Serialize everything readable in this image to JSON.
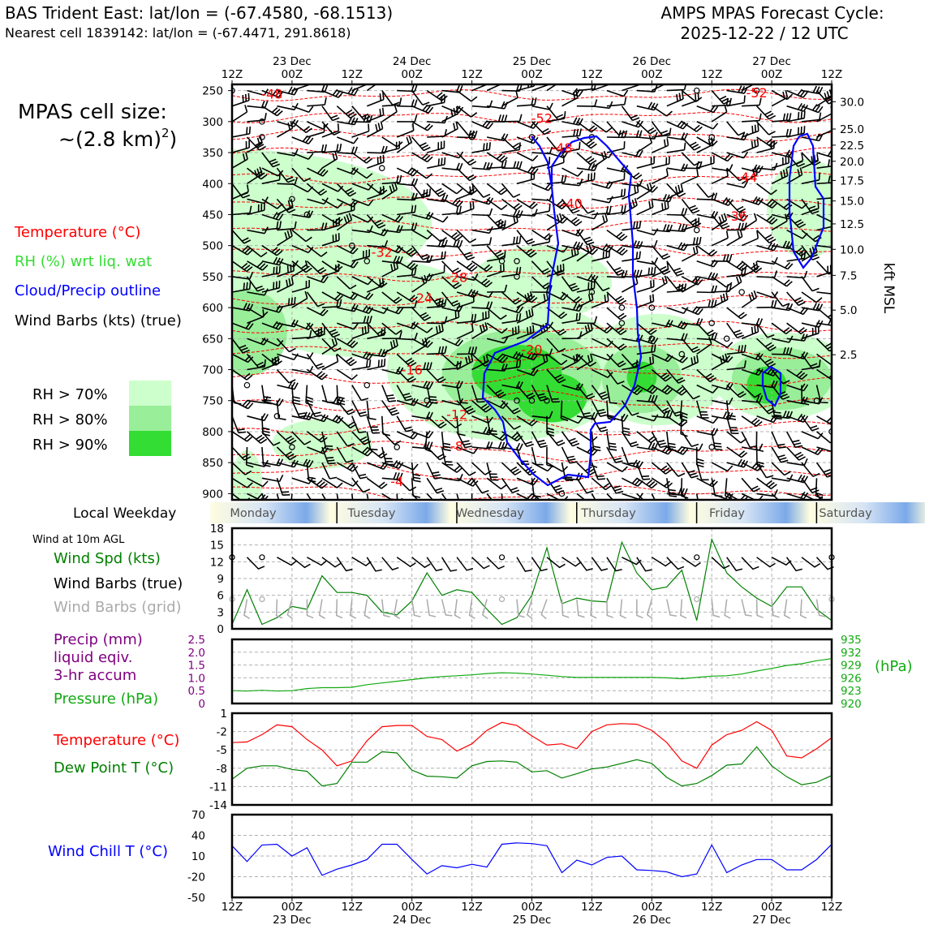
{
  "header": {
    "station": "BAS Trident East: lat/lon = (-67.4580, -68.1513)",
    "nearest_cell": "Nearest cell 1839142: lat/lon = (-67.4471, 291.8618)",
    "product": "AMPS MPAS Forecast Cycle:",
    "cycle": "2025-12-22 / 12 UTC"
  },
  "side_labels": {
    "cell_size_1": "MPAS cell size:",
    "cell_size_2": "~(2.8 km)",
    "cell_size_exp": "2",
    "temperature": "Temperature (°C)",
    "rh": "RH (%) wrt liq. wat",
    "cloud": "Cloud/Precip outline",
    "wind_barbs": "Wind Barbs (kts) (true)",
    "rh70": "RH > 70%",
    "rh80": "RH > 80%",
    "rh90": "RH > 90%",
    "kft_label": "kft MSL",
    "local_weekday": "Local Weekday",
    "wind_10m": "Wind at 10m AGL",
    "wind_spd": "Wind Spd (kts)",
    "wind_barbs_true": "Wind Barbs (true)",
    "wind_barbs_grid": "Wind Barbs (grid)",
    "precip_1": "Precip (mm)",
    "precip_2": "liquid eqiv.",
    "precip_3": "3-hr accum",
    "pressure": "Pressure (hPa)",
    "hpa": "(hPa)",
    "temp_c": "Temperature (°C)",
    "dewpoint_c": "Dew Point T (°C)",
    "windchill_c": "Wind Chill T (°C)"
  },
  "colors": {
    "temperature": "#ff0000",
    "rh_label": "#33dd33",
    "cloud": "#0000ff",
    "green_line": "#008000",
    "pressure_line": "#11aa11",
    "precip": "#800080",
    "rh70": "#ccffcc",
    "rh80": "#99ee99",
    "rh90": "#33dd33",
    "wind_grid": "#aaaaaa"
  },
  "chart_data": [
    {
      "type": "time-height",
      "title": "Vertical cross-section",
      "x_ticks": [
        "12Z",
        "00Z",
        "12Z",
        "00Z",
        "12Z",
        "00Z",
        "12Z",
        "00Z",
        "12Z",
        "00Z",
        "12Z"
      ],
      "x_dates": [
        "23 Dec",
        "24 Dec",
        "25 Dec",
        "26 Dec",
        "27 Dec"
      ],
      "x_date_tick_index": [
        1,
        3,
        5,
        7,
        9
      ],
      "pressure_levels_hpa": [
        250,
        300,
        350,
        400,
        450,
        500,
        550,
        600,
        650,
        700,
        750,
        800,
        850,
        900
      ],
      "height_ticks_kft": [
        30.0,
        25.0,
        22.5,
        20.0,
        17.5,
        15.0,
        12.5,
        10.0,
        7.5,
        5.0,
        2.5
      ],
      "height_tick_pressure_hpa": [
        268,
        312,
        338,
        364,
        395,
        428,
        465,
        506,
        548,
        604,
        676
      ],
      "ylim_hpa": [
        240,
        910
      ],
      "temperature_contour_labels": [
        {
          "value": -48,
          "hour": 8,
          "p": 255
        },
        {
          "value": -52,
          "hour": 62,
          "p": 294
        },
        {
          "value": -52,
          "hour": 105,
          "p": 253
        },
        {
          "value": -48,
          "hour": 66,
          "p": 342
        },
        {
          "value": -44,
          "hour": 103,
          "p": 389
        },
        {
          "value": -40,
          "hour": 68,
          "p": 432
        },
        {
          "value": -36,
          "hour": 101,
          "p": 452
        },
        {
          "value": -32,
          "hour": 30,
          "p": 510
        },
        {
          "value": -28,
          "hour": 45,
          "p": 551
        },
        {
          "value": -24,
          "hour": 38,
          "p": 584
        },
        {
          "value": -20,
          "hour": 60,
          "p": 667
        },
        {
          "value": -16,
          "hour": 36,
          "p": 700
        },
        {
          "value": -12,
          "hour": 45,
          "p": 772
        },
        {
          "value": -8,
          "hour": 45,
          "p": 823
        },
        {
          "value": -4,
          "hour": 33,
          "p": 880
        }
      ],
      "series": [
        {
          "name": "RH > 70%",
          "threshold": 70
        },
        {
          "name": "RH > 80%",
          "threshold": 80
        },
        {
          "name": "RH > 90%",
          "threshold": 90
        },
        {
          "name": "Cloud/Precip outline"
        },
        {
          "name": "Wind Barbs (kts) (true)"
        }
      ]
    },
    {
      "type": "band",
      "title": "Local Weekday",
      "categories": [
        "Monday",
        "Tuesday",
        "Wednesday",
        "Thursday",
        "Friday",
        "Saturday"
      ]
    },
    {
      "type": "line",
      "title": "Wind at 10m AGL",
      "ylabel": "Wind Spd (kts)",
      "ylim": [
        0,
        18
      ],
      "y_ticks": [
        0,
        3,
        6,
        9,
        12,
        15,
        18
      ],
      "x": [
        0,
        3,
        6,
        9,
        12,
        15,
        18,
        21,
        24,
        27,
        30,
        33,
        36,
        39,
        42,
        45,
        48,
        51,
        54,
        57,
        60,
        63,
        66,
        69,
        72,
        75,
        78,
        81,
        84,
        87,
        90,
        93,
        96,
        99,
        102,
        105,
        108,
        111,
        114,
        117,
        120
      ],
      "values": [
        0.8,
        7.0,
        0.8,
        2.0,
        4.0,
        3.5,
        9.5,
        6.5,
        6.5,
        6.0,
        3.0,
        2.5,
        5.0,
        10.0,
        6.0,
        7.0,
        6.5,
        3.5,
        0.8,
        2.0,
        6.0,
        14.5,
        4.5,
        5.5,
        5.0,
        4.8,
        15.5,
        10.0,
        7.0,
        7.5,
        10.5,
        1.5,
        16.0,
        10.0,
        7.5,
        5.5,
        4.0,
        7.5,
        7.5,
        3.5,
        1.5
      ]
    },
    {
      "type": "line",
      "title": "Precip and Pressure",
      "series": [
        {
          "name": "Precip (mm) liquid eqiv. 3-hr accum",
          "ylim": [
            0,
            2.5
          ],
          "y_ticks": [
            0,
            0.5,
            1.0,
            1.5,
            2.0,
            2.5
          ],
          "values": []
        },
        {
          "name": "Pressure (hPa)",
          "ylim": [
            920,
            935
          ],
          "y_ticks": [
            920,
            923,
            926,
            929,
            932,
            935
          ],
          "x": [
            0,
            3,
            6,
            9,
            12,
            15,
            18,
            21,
            24,
            27,
            30,
            33,
            36,
            39,
            42,
            45,
            48,
            51,
            54,
            57,
            60,
            63,
            66,
            69,
            72,
            75,
            78,
            81,
            84,
            87,
            90,
            93,
            96,
            99,
            102,
            105,
            108,
            111,
            114,
            117,
            120
          ],
          "values": [
            923.0,
            922.9,
            923.1,
            922.9,
            923.0,
            923.5,
            923.7,
            923.7,
            923.8,
            924.4,
            924.8,
            925.2,
            925.6,
            926.0,
            926.3,
            926.5,
            926.7,
            927.0,
            927.2,
            927.1,
            926.9,
            926.6,
            926.3,
            926.1,
            926.1,
            926.1,
            926.1,
            926.1,
            926.1,
            926.0,
            925.8,
            926.1,
            926.4,
            926.5,
            926.9,
            927.6,
            928.2,
            928.9,
            929.3,
            930.0,
            930.5
          ]
        }
      ]
    },
    {
      "type": "line",
      "title": "Temperature and Dew Point",
      "ylim": [
        -14,
        1
      ],
      "y_ticks": [
        -14,
        -11,
        -8,
        -5,
        -2,
        1
      ],
      "x": [
        0,
        3,
        6,
        9,
        12,
        15,
        18,
        21,
        24,
        27,
        30,
        33,
        36,
        39,
        42,
        45,
        48,
        51,
        54,
        57,
        60,
        63,
        66,
        69,
        72,
        75,
        78,
        81,
        84,
        87,
        90,
        93,
        96,
        99,
        102,
        105,
        108,
        111,
        114,
        117,
        120
      ],
      "series": [
        {
          "name": "Temperature (°C)",
          "values": [
            -3.8,
            -3.7,
            -2.5,
            -0.9,
            -1.2,
            -3.3,
            -5.0,
            -7.6,
            -6.8,
            -3.5,
            -1.2,
            -1.0,
            -1.0,
            -2.8,
            -3.3,
            -5.2,
            -4.0,
            -1.8,
            -0.5,
            -1.0,
            -2.7,
            -4.2,
            -4.0,
            -4.8,
            -2.0,
            -0.9,
            -0.7,
            -0.8,
            -1.8,
            -3.8,
            -6.8,
            -8.0,
            -4.2,
            -2.5,
            -1.8,
            -0.4,
            -1.8,
            -6.0,
            -6.3,
            -4.8,
            -3.0
          ]
        },
        {
          "name": "Dew Point T (°C)",
          "values": [
            -9.8,
            -8.0,
            -7.6,
            -7.6,
            -8.2,
            -8.5,
            -10.9,
            -10.5,
            -7.0,
            -7.0,
            -5.3,
            -5.5,
            -8.3,
            -9.3,
            -9.4,
            -9.6,
            -7.6,
            -6.9,
            -6.8,
            -7.0,
            -8.6,
            -8.4,
            -9.6,
            -8.9,
            -8.1,
            -7.8,
            -7.2,
            -6.6,
            -7.2,
            -9.5,
            -10.9,
            -10.5,
            -9.2,
            -7.5,
            -7.3,
            -4.5,
            -7.6,
            -9.4,
            -10.7,
            -10.3,
            -9.2
          ]
        }
      ]
    },
    {
      "type": "line",
      "title": "Wind Chill",
      "ylabel": "Wind Chill T (°C)",
      "ylim": [
        -50,
        70
      ],
      "y_ticks": [
        -50,
        -20,
        10,
        40,
        70
      ],
      "x": [
        0,
        3,
        6,
        9,
        12,
        15,
        18,
        21,
        24,
        27,
        30,
        33,
        36,
        39,
        42,
        45,
        48,
        51,
        54,
        57,
        60,
        63,
        66,
        69,
        72,
        75,
        78,
        81,
        84,
        87,
        90,
        93,
        96,
        99,
        102,
        105,
        108,
        111,
        114,
        117,
        120
      ],
      "values": [
        25,
        2,
        26,
        27,
        10,
        22,
        -18,
        -9,
        -3,
        5,
        27,
        27,
        5,
        -16,
        -4,
        -7,
        -2,
        -6,
        27,
        29,
        28,
        25,
        -14,
        4,
        -3,
        8,
        10,
        -10,
        -11,
        -13,
        -20,
        -16,
        26,
        -14,
        -3,
        5,
        5,
        -10,
        -10,
        5,
        27
      ]
    }
  ]
}
